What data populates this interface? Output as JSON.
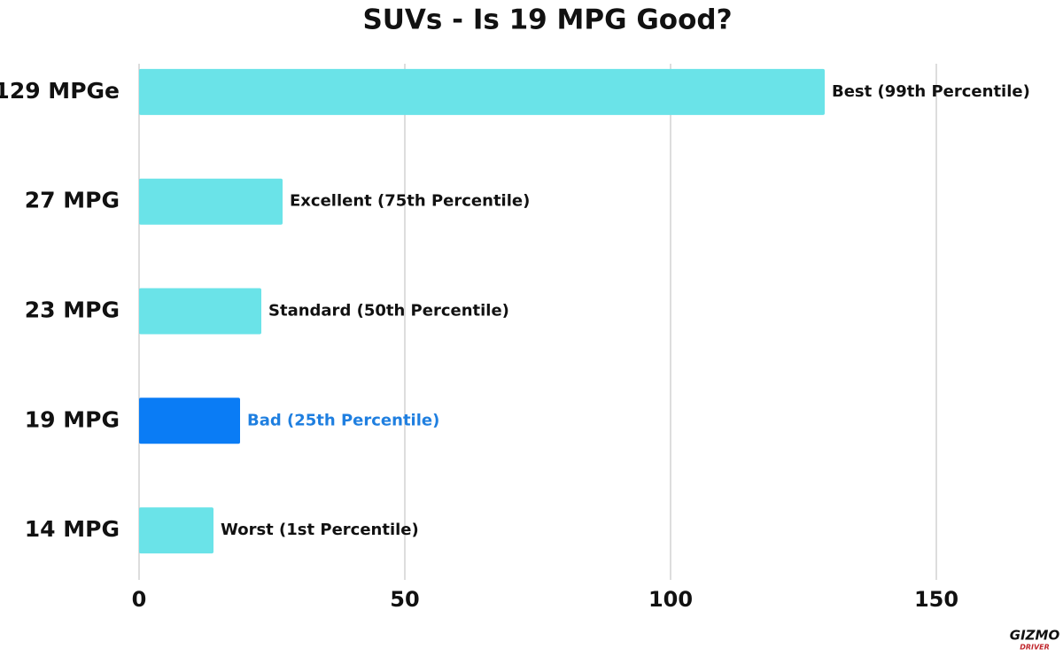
{
  "chart_data": {
    "type": "bar",
    "orientation": "horizontal",
    "title": "SUVs - Is 19 MPG Good?",
    "categories": [
      "129 MPGe",
      "27 MPG",
      "23 MPG",
      "19 MPG",
      "14 MPG"
    ],
    "values": [
      129,
      27,
      23,
      19,
      14
    ],
    "bar_labels": [
      "Best (99th Percentile)",
      "Excellent (75th Percentile)",
      "Standard (50th Percentile)",
      "Bad (25th Percentile)",
      "Worst (1st Percentile)"
    ],
    "colors": [
      "#6ae3e8",
      "#6ae3e8",
      "#6ae3e8",
      "#0a7cf5",
      "#6ae3e8"
    ],
    "label_colors": [
      "#111111",
      "#111111",
      "#111111",
      "#1f7fe0",
      "#111111"
    ],
    "xlim": [
      0,
      172
    ],
    "xticks": [
      0,
      50,
      100,
      150
    ],
    "grid": true
  },
  "logo": {
    "title": "GIZMO",
    "subtitle": "DRIVER"
  }
}
